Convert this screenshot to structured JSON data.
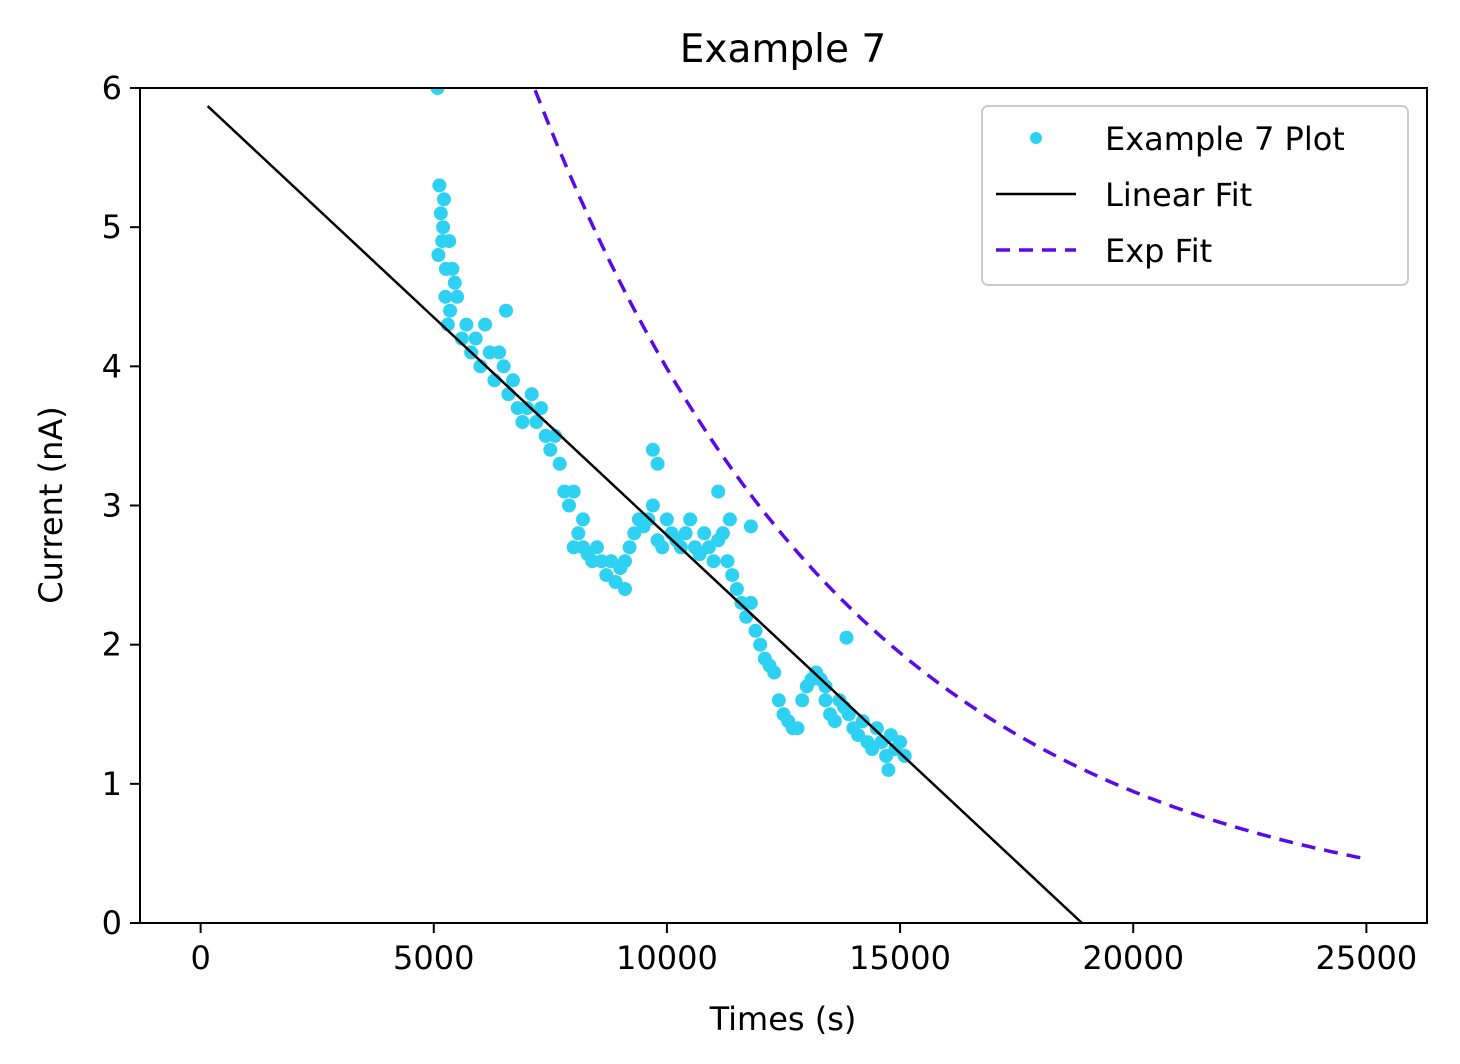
{
  "chart_data": {
    "type": "scatter",
    "title": "Example 7",
    "xlabel": "Times (s)",
    "ylabel": "Current (nA)",
    "xlim": [
      -1300,
      26300
    ],
    "ylim": [
      0,
      6
    ],
    "xticks": [
      0,
      5000,
      10000,
      15000,
      20000,
      25000
    ],
    "yticks": [
      0,
      1,
      2,
      3,
      4,
      5,
      6
    ],
    "grid": false,
    "legend_position": "top-right",
    "legend": [
      "Example 7 Plot",
      "Linear Fit",
      "Exp Fit"
    ],
    "series": [
      {
        "name": "Example 7 Plot",
        "style": "markers",
        "color": "#2ed1f2",
        "x": [
          5100,
          5150,
          5200,
          5250,
          5300,
          5350,
          5400,
          5450,
          5500,
          5600,
          5700,
          5800,
          5900,
          6000,
          6100,
          6200,
          6300,
          6400,
          6500,
          6600,
          6700,
          6800,
          6900,
          7000,
          7100,
          7200,
          7300,
          7400,
          7500,
          7600,
          7700,
          7800,
          7900,
          8000,
          8100,
          8200,
          8300,
          8400,
          8500,
          8600,
          8700,
          8800,
          8900,
          9000,
          9100,
          9200,
          9300,
          9400,
          9500,
          9600,
          9700,
          9800,
          9900,
          10000,
          10100,
          10200,
          10300,
          10400,
          10500,
          10600,
          10700,
          10800,
          10900,
          11000,
          11100,
          11200,
          11300,
          11400,
          11500,
          11600,
          11700,
          11800,
          11900,
          12000,
          12100,
          12200,
          12300,
          12400,
          12500,
          12600,
          12700,
          12800,
          12900,
          13000,
          13100,
          13200,
          13300,
          13400,
          13500,
          13600,
          13700,
          13800,
          13900,
          14000,
          14100,
          14200,
          14300,
          14400,
          14500,
          14600,
          14700,
          14800,
          14900,
          15000,
          15100,
          5080,
          5120,
          5220,
          5330,
          5180,
          5260,
          6550,
          9700,
          9800,
          11100,
          11350,
          11800,
          13400,
          13850,
          14750,
          8000,
          8200,
          9100
        ],
        "y": [
          4.8,
          5.1,
          5.0,
          4.5,
          4.3,
          4.4,
          4.7,
          4.6,
          4.5,
          4.2,
          4.3,
          4.1,
          4.2,
          4.0,
          4.3,
          4.1,
          3.9,
          4.1,
          4.0,
          3.8,
          3.9,
          3.7,
          3.6,
          3.7,
          3.8,
          3.6,
          3.7,
          3.5,
          3.4,
          3.5,
          3.3,
          3.1,
          3.0,
          2.7,
          2.8,
          2.7,
          2.65,
          2.6,
          2.7,
          2.6,
          2.5,
          2.6,
          2.45,
          2.55,
          2.6,
          2.7,
          2.8,
          2.9,
          2.85,
          2.9,
          3.0,
          2.75,
          2.7,
          2.9,
          2.8,
          2.75,
          2.7,
          2.8,
          2.9,
          2.7,
          2.65,
          2.8,
          2.7,
          2.6,
          2.75,
          2.8,
          2.6,
          2.5,
          2.4,
          2.3,
          2.2,
          2.3,
          2.1,
          2.0,
          1.9,
          1.85,
          1.8,
          1.6,
          1.5,
          1.45,
          1.4,
          1.4,
          1.6,
          1.7,
          1.75,
          1.8,
          1.75,
          1.6,
          1.5,
          1.45,
          1.6,
          1.55,
          1.5,
          1.4,
          1.35,
          1.45,
          1.3,
          1.25,
          1.4,
          1.3,
          1.2,
          1.35,
          1.25,
          1.3,
          1.2,
          6.0,
          5.3,
          5.2,
          4.9,
          4.9,
          4.7,
          4.4,
          3.4,
          3.3,
          3.1,
          2.9,
          2.85,
          1.7,
          2.05,
          1.1,
          3.1,
          2.9,
          2.4
        ]
      },
      {
        "name": "Linear Fit",
        "style": "line",
        "color": "#000000",
        "x": [
          150,
          18900
        ],
        "y": [
          5.87,
          0
        ]
      },
      {
        "name": "Exp Fit",
        "style": "dashed",
        "color": "#5a0ae6",
        "formula": "y = 16.8 * exp(-x / 6950)",
        "x_range": [
          2900,
          25000
        ]
      }
    ]
  }
}
